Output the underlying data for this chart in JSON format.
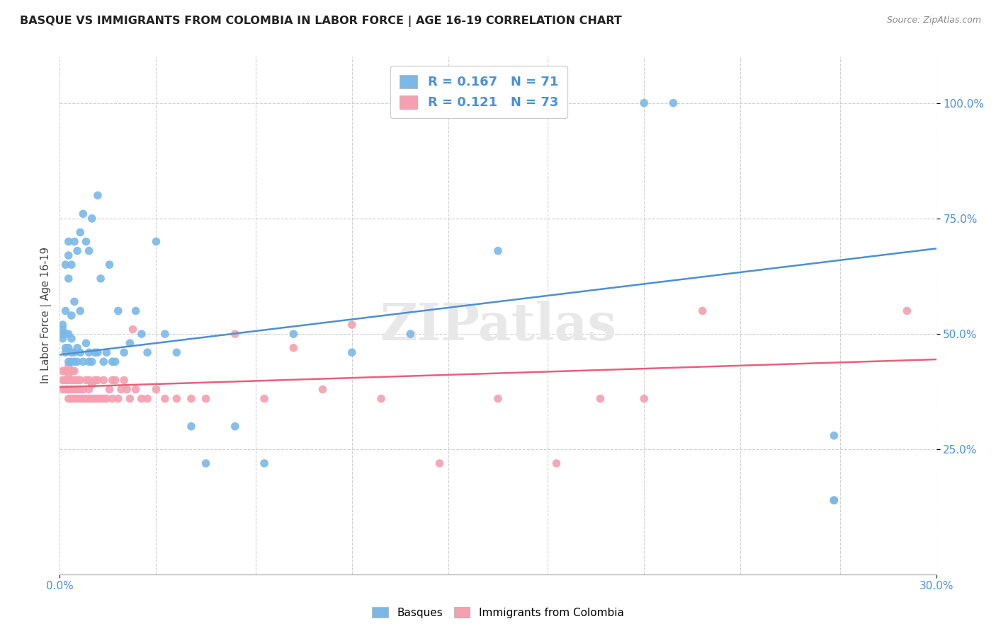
{
  "title": "BASQUE VS IMMIGRANTS FROM COLOMBIA IN LABOR FORCE | AGE 16-19 CORRELATION CHART",
  "source": "Source: ZipAtlas.com",
  "ylabel": "In Labor Force | Age 16-19",
  "xlim": [
    0.0,
    0.3
  ],
  "ylim": [
    -0.02,
    1.1
  ],
  "ytick_vals": [
    0.25,
    0.5,
    0.75,
    1.0
  ],
  "ytick_labels": [
    "25.0%",
    "50.0%",
    "75.0%",
    "100.0%"
  ],
  "xtick_vals": [
    0.0,
    0.3
  ],
  "xtick_labels": [
    "0.0%",
    "30.0%"
  ],
  "xgrid_vals": [
    0.0,
    0.033,
    0.067,
    0.1,
    0.133,
    0.167,
    0.2,
    0.233,
    0.267,
    0.3
  ],
  "legend_r_basque": "0.167",
  "legend_n_basque": "71",
  "legend_r_colombia": "0.121",
  "legend_n_colombia": "73",
  "basque_color": "#7ab8e8",
  "colombia_color": "#f4a0b0",
  "basque_line_color": "#4a90d9",
  "colombia_line_color": "#e8607a",
  "watermark": "ZIPatlas",
  "basque_trend_x": [
    0.0,
    0.3
  ],
  "basque_trend_y": [
    0.455,
    0.685
  ],
  "colombia_trend_x": [
    0.0,
    0.3
  ],
  "colombia_trend_y": [
    0.385,
    0.445
  ],
  "basque_x": [
    0.001,
    0.001,
    0.001,
    0.001,
    0.002,
    0.002,
    0.002,
    0.002,
    0.002,
    0.003,
    0.003,
    0.003,
    0.003,
    0.003,
    0.003,
    0.004,
    0.004,
    0.004,
    0.004,
    0.004,
    0.005,
    0.005,
    0.005,
    0.005,
    0.006,
    0.006,
    0.006,
    0.007,
    0.007,
    0.007,
    0.008,
    0.008,
    0.009,
    0.009,
    0.01,
    0.01,
    0.01,
    0.011,
    0.011,
    0.012,
    0.013,
    0.013,
    0.014,
    0.015,
    0.016,
    0.017,
    0.018,
    0.019,
    0.02,
    0.022,
    0.024,
    0.026,
    0.028,
    0.03,
    0.033,
    0.036,
    0.04,
    0.045,
    0.05,
    0.06,
    0.07,
    0.08,
    0.1,
    0.12,
    0.15,
    0.16,
    0.2,
    0.21,
    0.265,
    0.265,
    0.265
  ],
  "basque_y": [
    0.49,
    0.5,
    0.51,
    0.52,
    0.46,
    0.47,
    0.5,
    0.55,
    0.65,
    0.44,
    0.47,
    0.5,
    0.62,
    0.67,
    0.7,
    0.44,
    0.46,
    0.49,
    0.54,
    0.65,
    0.44,
    0.46,
    0.57,
    0.7,
    0.44,
    0.47,
    0.68,
    0.46,
    0.55,
    0.72,
    0.44,
    0.76,
    0.48,
    0.7,
    0.44,
    0.46,
    0.68,
    0.44,
    0.75,
    0.46,
    0.46,
    0.8,
    0.62,
    0.44,
    0.46,
    0.65,
    0.44,
    0.44,
    0.55,
    0.46,
    0.48,
    0.55,
    0.5,
    0.46,
    0.7,
    0.5,
    0.46,
    0.3,
    0.22,
    0.3,
    0.22,
    0.5,
    0.46,
    0.5,
    0.68,
    1.0,
    1.0,
    1.0,
    0.28,
    0.14,
    0.14
  ],
  "colombia_x": [
    0.001,
    0.001,
    0.001,
    0.002,
    0.002,
    0.002,
    0.003,
    0.003,
    0.003,
    0.003,
    0.003,
    0.004,
    0.004,
    0.004,
    0.004,
    0.005,
    0.005,
    0.005,
    0.005,
    0.006,
    0.006,
    0.006,
    0.007,
    0.007,
    0.007,
    0.008,
    0.008,
    0.009,
    0.009,
    0.01,
    0.01,
    0.01,
    0.011,
    0.011,
    0.012,
    0.012,
    0.013,
    0.013,
    0.014,
    0.015,
    0.015,
    0.016,
    0.017,
    0.018,
    0.018,
    0.019,
    0.02,
    0.021,
    0.022,
    0.023,
    0.024,
    0.025,
    0.026,
    0.028,
    0.03,
    0.033,
    0.036,
    0.04,
    0.045,
    0.05,
    0.06,
    0.07,
    0.08,
    0.09,
    0.1,
    0.11,
    0.13,
    0.15,
    0.17,
    0.185,
    0.2,
    0.22,
    0.29
  ],
  "colombia_y": [
    0.38,
    0.4,
    0.42,
    0.38,
    0.4,
    0.42,
    0.36,
    0.38,
    0.4,
    0.41,
    0.43,
    0.36,
    0.38,
    0.4,
    0.42,
    0.36,
    0.38,
    0.4,
    0.42,
    0.36,
    0.38,
    0.4,
    0.36,
    0.38,
    0.4,
    0.36,
    0.38,
    0.36,
    0.4,
    0.36,
    0.38,
    0.4,
    0.36,
    0.39,
    0.36,
    0.4,
    0.36,
    0.4,
    0.36,
    0.36,
    0.4,
    0.36,
    0.38,
    0.36,
    0.4,
    0.4,
    0.36,
    0.38,
    0.4,
    0.38,
    0.36,
    0.51,
    0.38,
    0.36,
    0.36,
    0.38,
    0.36,
    0.36,
    0.36,
    0.36,
    0.5,
    0.36,
    0.47,
    0.38,
    0.52,
    0.36,
    0.22,
    0.36,
    0.22,
    0.36,
    0.36,
    0.55,
    0.55
  ]
}
